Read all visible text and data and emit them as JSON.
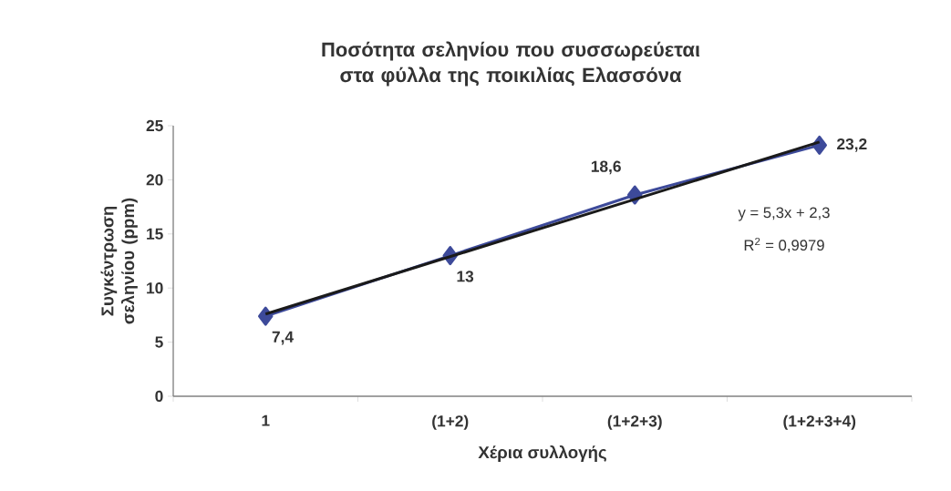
{
  "chart_data": {
    "type": "line",
    "title": "Ποσότητα σεληνίου που συσσωρεύεται στα φύλλα της ποικιλίας Ελασσόνα",
    "xlabel": "Χέρια συλλογής",
    "ylabel": "Συγκέντρωση σεληνίου (ppm)",
    "categories": [
      "1",
      "(1+2)",
      "(1+2+3)",
      "(1+2+3+4)"
    ],
    "series": [
      {
        "color": "#3d4a9a",
        "values": [
          7.4,
          13,
          18.6,
          23.2
        ],
        "value_labels": [
          "7,4",
          "13",
          "18,6",
          "23,2"
        ]
      },
      {
        "type": "line",
        "color": "#1a1a1a",
        "x": [
          "1",
          "(1+2+3+4)"
        ],
        "values": [
          7.6,
          23.5
        ],
        "marker": "none"
      }
    ],
    "ylim": [
      0,
      25
    ],
    "yticks": [
      0,
      5,
      10,
      15,
      20,
      25
    ],
    "annotations": [
      "y = 5,3x + 2,3",
      "R$^{2}$ = 0,9979"
    ],
    "marker": "diamond",
    "grid": false
  }
}
